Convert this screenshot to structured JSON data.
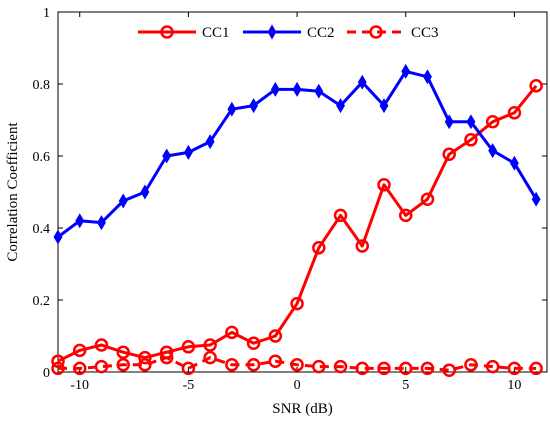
{
  "chart_data": {
    "type": "line",
    "xlabel": "SNR (dB)",
    "ylabel": "Correlation Coefficient",
    "xlim": [
      -11,
      11.5
    ],
    "ylim": [
      0,
      1
    ],
    "xticks": [
      -10,
      -5,
      0,
      5,
      10
    ],
    "xtick_labels": [
      "-10",
      "-5",
      "0",
      "5",
      "10"
    ],
    "yticks": [
      0,
      0.2,
      0.4,
      0.6,
      0.8,
      1
    ],
    "ytick_labels": [
      "0",
      "0.2",
      "0.4",
      "0.6",
      "0.8",
      "1"
    ],
    "grid": false,
    "legend_position": "top",
    "x": [
      -11,
      -10,
      -9,
      -8,
      -7,
      -6,
      -5,
      -4,
      -3,
      -2,
      -1,
      0,
      1,
      2,
      3,
      4,
      5,
      6,
      7,
      8,
      9,
      10,
      11
    ],
    "series": [
      {
        "name": "CC1",
        "color": "#ff0000",
        "line_style": "solid",
        "marker": "circle",
        "values": [
          0.03,
          0.06,
          0.075,
          0.055,
          0.04,
          0.055,
          0.07,
          0.075,
          0.11,
          0.08,
          0.1,
          0.19,
          0.345,
          0.435,
          0.35,
          0.52,
          0.435,
          0.48,
          0.605,
          0.645,
          0.695,
          0.72,
          0.795
        ]
      },
      {
        "name": "CC2",
        "color": "#0000ff",
        "line_style": "solid",
        "marker": "diamond",
        "values": [
          0.375,
          0.42,
          0.415,
          0.475,
          0.5,
          0.6,
          0.61,
          0.64,
          0.73,
          0.74,
          0.785,
          0.785,
          0.78,
          0.74,
          0.805,
          0.74,
          0.835,
          0.82,
          0.695,
          0.695,
          0.615,
          0.58,
          0.48
        ]
      },
      {
        "name": "CC3",
        "color": "#ff0000",
        "line_style": "dashed",
        "marker": "circle",
        "values": [
          0.01,
          0.01,
          0.015,
          0.02,
          0.02,
          0.04,
          0.01,
          0.04,
          0.02,
          0.02,
          0.03,
          0.02,
          0.015,
          0.015,
          0.01,
          0.01,
          0.01,
          0.01,
          0.005,
          0.02,
          0.015,
          0.01,
          0.01
        ]
      }
    ]
  }
}
